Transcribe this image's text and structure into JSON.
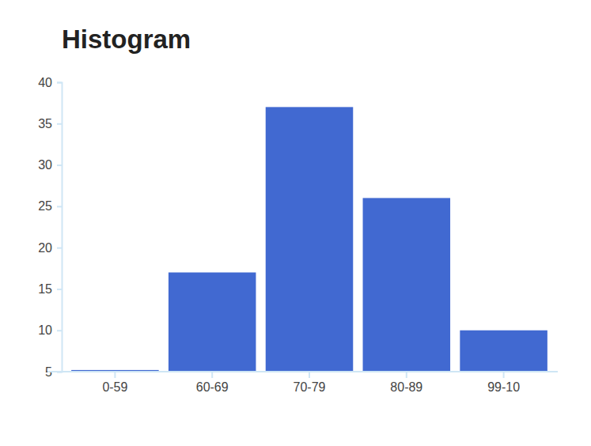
{
  "chart_data": {
    "type": "bar",
    "title": "Histogram",
    "categories": [
      "0-59",
      "60-69",
      "70-79",
      "80-89",
      "99-10"
    ],
    "values": [
      5.2,
      17,
      37,
      26,
      10
    ],
    "color": "#4169d1",
    "ylim": [
      5,
      40
    ],
    "yticks": [
      5,
      10,
      15,
      20,
      25,
      30,
      35,
      40
    ],
    "grid": false
  }
}
